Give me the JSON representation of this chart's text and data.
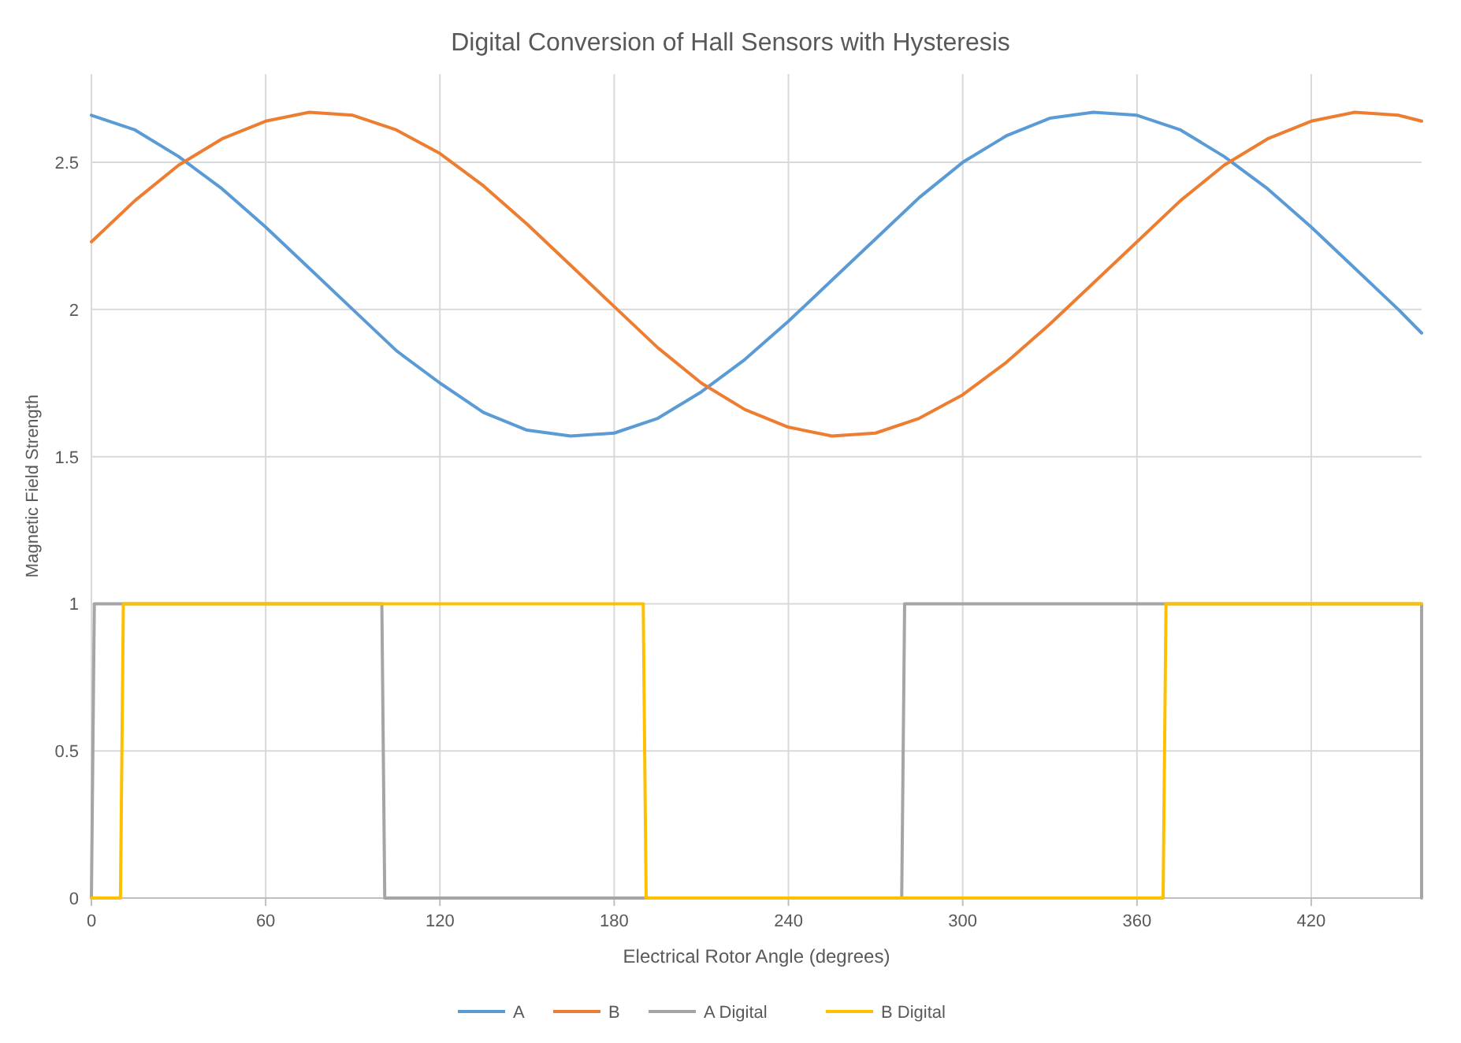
{
  "chart_data": {
    "type": "line",
    "title": "Digital Conversion of Hall Sensors with Hysteresis",
    "xlabel": "Electrical Rotor Angle (degrees)",
    "ylabel": "Magnetic Field Strength",
    "xlim": [
      0,
      458
    ],
    "xticks": [
      0,
      60,
      120,
      180,
      240,
      300,
      360,
      420
    ],
    "ylim": [
      0,
      2.8
    ],
    "yticks": [
      0,
      0.5,
      1,
      1.5,
      2,
      2.5
    ],
    "grid": true,
    "legend": "bottom",
    "marker": "none",
    "line_style": "solid",
    "x": [
      0,
      15,
      30,
      45,
      60,
      75,
      90,
      105,
      120,
      135,
      150,
      165,
      180,
      195,
      210,
      225,
      240,
      255,
      270,
      285,
      300,
      315,
      330,
      345,
      360,
      375,
      390,
      405,
      420,
      435,
      450,
      458
    ],
    "series": [
      {
        "name": "A",
        "color": "#5b9bd5",
        "values": [
          2.66,
          2.61,
          2.52,
          2.41,
          2.28,
          2.14,
          2.0,
          1.86,
          1.75,
          1.65,
          1.59,
          1.57,
          1.58,
          1.63,
          1.72,
          1.83,
          1.96,
          2.1,
          2.24,
          2.38,
          2.5,
          2.59,
          2.65,
          2.67,
          2.66,
          2.61,
          2.52,
          2.41,
          2.28,
          2.14,
          2.0,
          1.92
        ]
      },
      {
        "name": "B",
        "color": "#ed7d31",
        "values": [
          2.23,
          2.37,
          2.49,
          2.58,
          2.64,
          2.67,
          2.66,
          2.61,
          2.53,
          2.42,
          2.29,
          2.15,
          2.01,
          1.87,
          1.75,
          1.66,
          1.6,
          1.57,
          1.58,
          1.63,
          1.71,
          1.82,
          1.95,
          2.09,
          2.23,
          2.37,
          2.49,
          2.58,
          2.64,
          2.67,
          2.66,
          2.64
        ]
      },
      {
        "name": "A Digital",
        "color": "#a5a5a5",
        "x": [
          0,
          1,
          1,
          100,
          101,
          279,
          280,
          458,
          458
        ],
        "values": [
          0,
          1,
          1,
          1,
          0,
          0,
          1,
          1,
          0
        ]
      },
      {
        "name": "B Digital",
        "color": "#ffc000",
        "x": [
          0,
          10,
          11,
          190,
          191,
          369,
          370,
          458
        ],
        "values": [
          0,
          0,
          1,
          1,
          0,
          0,
          1,
          1
        ]
      }
    ]
  }
}
